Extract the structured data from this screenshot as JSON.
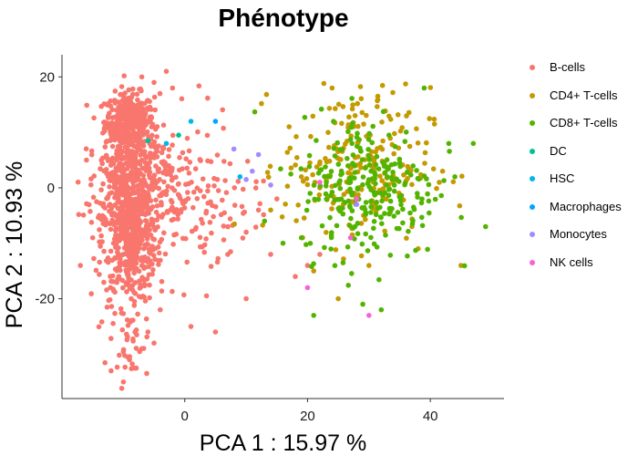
{
  "chart_data": {
    "type": "scatter",
    "title": "Phénotype",
    "xlabel": "PCA 1 : 15.97 %",
    "ylabel": "PCA 2 : 10.93 %",
    "xlim": [
      -20,
      52
    ],
    "ylim": [
      -38,
      24
    ],
    "xticks": [
      0,
      20,
      40
    ],
    "yticks": [
      -20,
      0,
      20
    ],
    "grid": false,
    "legend_position": "right",
    "series": [
      {
        "name": "B-cells",
        "color": "#F8766D",
        "clusters": [
          {
            "cx": -9,
            "cy": 12,
            "sx": 2.0,
            "sy": 2.5,
            "n": 380
          },
          {
            "cx": -9,
            "cy": -6,
            "sx": 2.2,
            "sy": 7.5,
            "n": 700
          },
          {
            "cx": -9,
            "cy": 2,
            "sx": 3.5,
            "sy": 4,
            "n": 120
          },
          {
            "cx": -2,
            "cy": -2,
            "sx": 5,
            "sy": 7,
            "n": 160
          },
          {
            "cx": 4,
            "cy": -3,
            "sx": 4,
            "sy": 5,
            "n": 50
          },
          {
            "cx": -9,
            "cy": -28,
            "sx": 1.5,
            "sy": 3,
            "n": 30
          }
        ],
        "points": [
          [
            -10,
            -35
          ],
          [
            -12,
            -33
          ],
          [
            -9,
            -31
          ],
          [
            -7,
            -29
          ],
          [
            -6,
            -26
          ],
          [
            -5,
            -28
          ],
          [
            -4,
            -22
          ],
          [
            1,
            -25
          ],
          [
            5,
            -26
          ],
          [
            10,
            -8
          ],
          [
            14,
            -12
          ],
          [
            18,
            -16
          ],
          [
            20,
            -14
          ],
          [
            22,
            -12
          ],
          [
            10,
            -20
          ],
          [
            7,
            -12
          ],
          [
            12,
            -4
          ],
          [
            15,
            -2
          ],
          [
            -3,
            21
          ],
          [
            -5,
            19
          ],
          [
            -7,
            20
          ],
          [
            -2,
            18
          ],
          [
            -16,
            5
          ],
          [
            -17,
            -14
          ],
          [
            -15,
            -9
          ]
        ]
      },
      {
        "name": "CD4+ T-cells",
        "color": "#C49A00",
        "clusters": [
          {
            "cx": 28,
            "cy": 4,
            "sx": 6,
            "sy": 7,
            "n": 220
          }
        ],
        "points": [
          [
            24,
            18
          ],
          [
            45,
            -14
          ],
          [
            17,
            11
          ],
          [
            25,
            -20
          ],
          [
            14,
            -4
          ],
          [
            30,
            -14
          ],
          [
            37,
            -7
          ],
          [
            19,
            2
          ],
          [
            21,
            -15
          ],
          [
            22,
            0
          ],
          [
            42,
            3
          ]
        ]
      },
      {
        "name": "CD8+ T-cells",
        "color": "#53B400",
        "clusters": [
          {
            "cx": 30,
            "cy": 0,
            "sx": 5.5,
            "sy": 6.5,
            "n": 260
          }
        ],
        "points": [
          [
            39,
            18
          ],
          [
            49,
            -7
          ],
          [
            21,
            -23
          ],
          [
            32,
            -22
          ],
          [
            29,
            -21
          ],
          [
            13,
            -6
          ],
          [
            16,
            -10
          ],
          [
            44,
            2
          ],
          [
            43,
            8
          ],
          [
            47,
            8
          ],
          [
            19,
            -9
          ]
        ]
      },
      {
        "name": "DC",
        "color": "#00C094",
        "clusters": [],
        "points": [
          [
            -6,
            8.5
          ],
          [
            -1,
            9.5
          ]
        ]
      },
      {
        "name": "HSC",
        "color": "#00B6EB",
        "clusters": [],
        "points": [
          [
            -3,
            8
          ],
          [
            1,
            12
          ],
          [
            9,
            2
          ]
        ]
      },
      {
        "name": "Macrophages",
        "color": "#06A4FF",
        "clusters": [],
        "points": [
          [
            5,
            12
          ]
        ]
      },
      {
        "name": "Monocytes",
        "color": "#A58AFF",
        "clusters": [],
        "points": [
          [
            8,
            7
          ],
          [
            10,
            1.5
          ],
          [
            12,
            6
          ],
          [
            14,
            0.5
          ],
          [
            11,
            3
          ],
          [
            28,
            -3
          ]
        ]
      },
      {
        "name": "NK cells",
        "color": "#FB61D7",
        "clusters": [],
        "points": [
          [
            20,
            -18
          ],
          [
            30,
            -23
          ],
          [
            22,
            1
          ],
          [
            28,
            -2
          ],
          [
            27,
            -9
          ]
        ]
      }
    ]
  }
}
